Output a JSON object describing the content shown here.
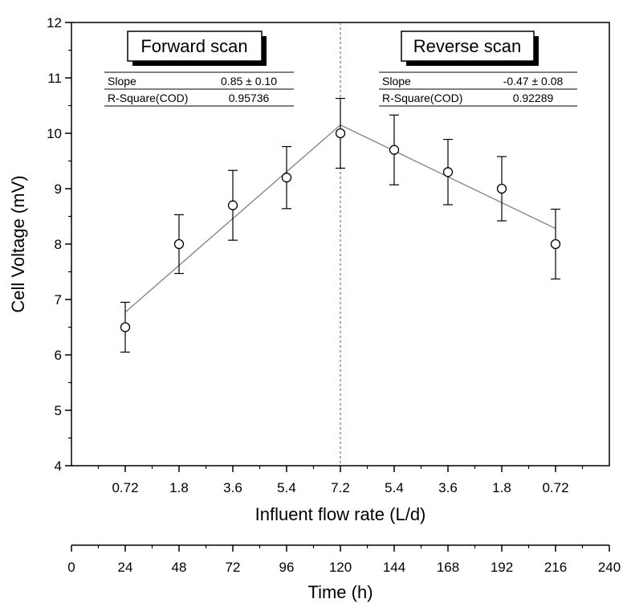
{
  "chart_data": {
    "type": "scatter",
    "ylabel": "Cell Voltage (mV)",
    "xlabel": "Influent flow rate (L/d)",
    "x2label": "Time (h)",
    "ylim": [
      4,
      12
    ],
    "xlim": [
      0,
      240
    ],
    "y_ticks": [
      "4",
      "5",
      "6",
      "7",
      "8",
      "9",
      "10",
      "11",
      "12"
    ],
    "flow_ticks": [
      {
        "t": 24,
        "label": "0.72"
      },
      {
        "t": 48,
        "label": "1.8"
      },
      {
        "t": 72,
        "label": "3.6"
      },
      {
        "t": 96,
        "label": "5.4"
      },
      {
        "t": 120,
        "label": "7.2"
      },
      {
        "t": 144,
        "label": "5.4"
      },
      {
        "t": 168,
        "label": "3.6"
      },
      {
        "t": 192,
        "label": "1.8"
      },
      {
        "t": 216,
        "label": "0.72"
      }
    ],
    "time_ticks": [
      "0",
      "24",
      "48",
      "72",
      "96",
      "120",
      "144",
      "168",
      "192",
      "216",
      "240"
    ],
    "points": [
      {
        "t": 24,
        "flow": 0.72,
        "y": 6.5,
        "err": 0.45
      },
      {
        "t": 48,
        "flow": 1.8,
        "y": 8.0,
        "err": 0.53
      },
      {
        "t": 72,
        "flow": 3.6,
        "y": 8.7,
        "err": 0.63
      },
      {
        "t": 96,
        "flow": 5.4,
        "y": 9.2,
        "err": 0.56
      },
      {
        "t": 120,
        "flow": 7.2,
        "y": 10.0,
        "err": 0.63
      },
      {
        "t": 144,
        "flow": 5.4,
        "y": 9.7,
        "err": 0.63
      },
      {
        "t": 168,
        "flow": 3.6,
        "y": 9.3,
        "err": 0.59
      },
      {
        "t": 192,
        "flow": 1.8,
        "y": 9.0,
        "err": 0.58
      },
      {
        "t": 216,
        "flow": 0.72,
        "y": 8.0,
        "err": 0.63
      }
    ],
    "fits": [
      {
        "from": [
          24,
          6.77
        ],
        "to": [
          120,
          10.15
        ]
      },
      {
        "from": [
          120,
          10.15
        ],
        "to": [
          216,
          8.28
        ]
      }
    ],
    "divider_t": 120,
    "forward": {
      "title": "Forward scan",
      "slope_label": "Slope",
      "slope_value": "0.85 ± 0.10",
      "r2_label": "R-Square(COD)",
      "r2_value": "0.95736"
    },
    "reverse": {
      "title": "Reverse scan",
      "slope_label": "Slope",
      "slope_value": "-0.47 ± 0.08",
      "r2_label": "R-Square(COD)",
      "r2_value": "0.92289"
    }
  }
}
